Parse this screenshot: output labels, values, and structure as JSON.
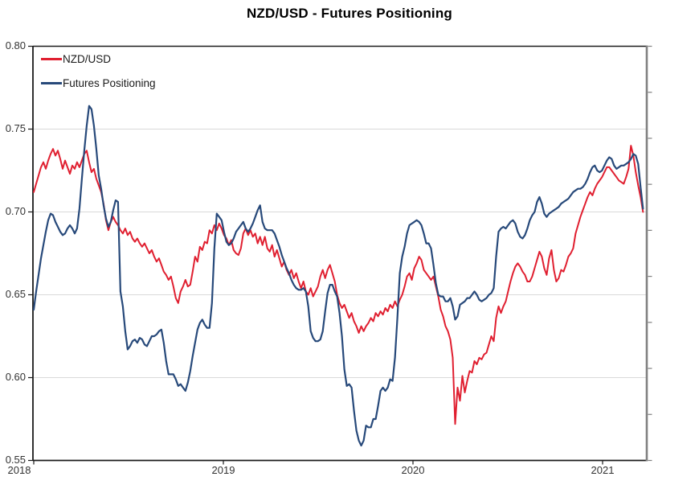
{
  "title": "NZD/USD - Futures Positioning",
  "colors": {
    "nzdusd_red": "#E01F30",
    "futures_navy": "#27497A",
    "gridline": "#D9D9D9",
    "spine_dark": "#1A1A1A",
    "spine_right_gray": "#808080",
    "tick_label_text": "#333333",
    "title_text": "#000000"
  },
  "legend": {
    "items": [
      {
        "label": "NZD/USD",
        "color": "#E01F30"
      },
      {
        "label": "Futures Positioning",
        "color": "#27497A"
      }
    ]
  },
  "chart_data": {
    "type": "line",
    "title": "NZD/USD - Futures Positioning",
    "xlabel": "",
    "ylabel": "",
    "grid": "horizontal",
    "legend_position": "upper-left-inside",
    "x_axis": {
      "tick_labels": [
        "2018",
        "2019",
        "2020",
        "2021"
      ],
      "tick_values": [
        2018,
        2019,
        2020,
        2021
      ],
      "xlim": [
        2018.0,
        2021.25
      ]
    },
    "y_axis": {
      "tick_labels": [
        "0.80",
        "0.75",
        "0.70",
        "0.65",
        "0.60",
        "0.55"
      ],
      "tick_values": [
        0.8,
        0.75,
        0.7,
        0.65,
        0.6,
        0.55
      ],
      "ylim": [
        0.55,
        0.8
      ],
      "tick_step": 0.05
    },
    "right_axis": {
      "labels_visible": false,
      "tick_count": 10
    },
    "series": [
      {
        "name": "NZD/USD",
        "color": "#E01F30",
        "width": 2,
        "x_start_year": 2018.0,
        "x_step_years": 0.0127,
        "values": [
          0.712,
          0.717,
          0.722,
          0.727,
          0.73,
          0.726,
          0.731,
          0.735,
          0.738,
          0.734,
          0.737,
          0.732,
          0.726,
          0.731,
          0.727,
          0.723,
          0.728,
          0.726,
          0.73,
          0.727,
          0.731,
          0.735,
          0.737,
          0.73,
          0.724,
          0.726,
          0.72,
          0.716,
          0.712,
          0.705,
          0.695,
          0.689,
          0.694,
          0.697,
          0.694,
          0.692,
          0.689,
          0.687,
          0.69,
          0.686,
          0.688,
          0.684,
          0.682,
          0.684,
          0.681,
          0.679,
          0.681,
          0.678,
          0.675,
          0.677,
          0.673,
          0.67,
          0.672,
          0.668,
          0.664,
          0.662,
          0.659,
          0.661,
          0.655,
          0.648,
          0.645,
          0.652,
          0.655,
          0.659,
          0.655,
          0.656,
          0.664,
          0.673,
          0.67,
          0.679,
          0.677,
          0.682,
          0.681,
          0.689,
          0.687,
          0.692,
          0.689,
          0.693,
          0.69,
          0.686,
          0.684,
          0.68,
          0.683,
          0.677,
          0.675,
          0.674,
          0.678,
          0.687,
          0.69,
          0.686,
          0.689,
          0.685,
          0.687,
          0.681,
          0.685,
          0.68,
          0.685,
          0.678,
          0.676,
          0.68,
          0.673,
          0.677,
          0.672,
          0.667,
          0.67,
          0.665,
          0.662,
          0.665,
          0.66,
          0.663,
          0.658,
          0.654,
          0.658,
          0.652,
          0.65,
          0.654,
          0.649,
          0.652,
          0.655,
          0.661,
          0.665,
          0.66,
          0.665,
          0.668,
          0.663,
          0.658,
          0.65,
          0.645,
          0.642,
          0.644,
          0.64,
          0.636,
          0.639,
          0.634,
          0.631,
          0.627,
          0.631,
          0.628,
          0.631,
          0.633,
          0.636,
          0.634,
          0.639,
          0.637,
          0.64,
          0.638,
          0.642,
          0.64,
          0.644,
          0.642,
          0.646,
          0.643,
          0.647,
          0.65,
          0.655,
          0.661,
          0.663,
          0.659,
          0.666,
          0.669,
          0.673,
          0.671,
          0.665,
          0.663,
          0.661,
          0.659,
          0.661,
          0.655,
          0.649,
          0.641,
          0.637,
          0.631,
          0.628,
          0.623,
          0.612,
          0.572,
          0.594,
          0.586,
          0.601,
          0.591,
          0.598,
          0.604,
          0.603,
          0.61,
          0.608,
          0.612,
          0.611,
          0.614,
          0.615,
          0.62,
          0.625,
          0.622,
          0.636,
          0.643,
          0.639,
          0.643,
          0.646,
          0.652,
          0.658,
          0.663,
          0.667,
          0.669,
          0.667,
          0.664,
          0.662,
          0.658,
          0.658,
          0.661,
          0.666,
          0.671,
          0.676,
          0.673,
          0.666,
          0.662,
          0.672,
          0.677,
          0.665,
          0.658,
          0.66,
          0.665,
          0.664,
          0.668,
          0.673,
          0.675,
          0.678,
          0.687,
          0.692,
          0.697,
          0.701,
          0.705,
          0.709,
          0.712,
          0.71,
          0.714,
          0.717,
          0.719,
          0.721,
          0.724,
          0.727,
          0.727,
          0.725,
          0.723,
          0.721,
          0.719,
          0.718,
          0.717,
          0.721,
          0.726,
          0.74,
          0.734,
          0.724,
          0.716,
          0.709,
          0.7
        ]
      },
      {
        "name": "Futures Positioning",
        "color": "#27497A",
        "width": 2.2,
        "x_start_year": 2018.0,
        "x_step_years": 0.0127,
        "values": [
          0.641,
          0.652,
          0.662,
          0.672,
          0.68,
          0.688,
          0.695,
          0.699,
          0.698,
          0.694,
          0.691,
          0.688,
          0.686,
          0.687,
          0.69,
          0.692,
          0.69,
          0.687,
          0.69,
          0.702,
          0.72,
          0.737,
          0.752,
          0.764,
          0.762,
          0.752,
          0.738,
          0.722,
          0.714,
          0.704,
          0.696,
          0.691,
          0.694,
          0.701,
          0.707,
          0.706,
          0.652,
          0.643,
          0.628,
          0.617,
          0.619,
          0.622,
          0.623,
          0.621,
          0.624,
          0.623,
          0.62,
          0.619,
          0.622,
          0.625,
          0.625,
          0.626,
          0.628,
          0.629,
          0.621,
          0.61,
          0.602,
          0.602,
          0.602,
          0.599,
          0.595,
          0.596,
          0.594,
          0.592,
          0.597,
          0.604,
          0.613,
          0.621,
          0.629,
          0.633,
          0.635,
          0.632,
          0.63,
          0.63,
          0.645,
          0.678,
          0.699,
          0.697,
          0.695,
          0.688,
          0.682,
          0.68,
          0.681,
          0.684,
          0.688,
          0.69,
          0.692,
          0.694,
          0.69,
          0.688,
          0.69,
          0.693,
          0.697,
          0.701,
          0.704,
          0.694,
          0.69,
          0.689,
          0.689,
          0.689,
          0.687,
          0.683,
          0.679,
          0.674,
          0.67,
          0.666,
          0.663,
          0.659,
          0.656,
          0.654,
          0.653,
          0.653,
          0.654,
          0.652,
          0.643,
          0.628,
          0.624,
          0.622,
          0.622,
          0.623,
          0.628,
          0.64,
          0.651,
          0.656,
          0.656,
          0.652,
          0.649,
          0.639,
          0.625,
          0.605,
          0.595,
          0.596,
          0.594,
          0.58,
          0.568,
          0.562,
          0.559,
          0.562,
          0.571,
          0.57,
          0.57,
          0.575,
          0.575,
          0.583,
          0.592,
          0.594,
          0.592,
          0.594,
          0.599,
          0.598,
          0.612,
          0.636,
          0.663,
          0.673,
          0.679,
          0.687,
          0.692,
          0.693,
          0.694,
          0.695,
          0.694,
          0.692,
          0.687,
          0.681,
          0.681,
          0.678,
          0.668,
          0.657,
          0.65,
          0.649,
          0.649,
          0.646,
          0.646,
          0.648,
          0.643,
          0.635,
          0.637,
          0.644,
          0.645,
          0.646,
          0.648,
          0.648,
          0.65,
          0.652,
          0.65,
          0.647,
          0.646,
          0.647,
          0.648,
          0.65,
          0.651,
          0.654,
          0.673,
          0.688,
          0.69,
          0.691,
          0.69,
          0.692,
          0.694,
          0.695,
          0.693,
          0.688,
          0.685,
          0.684,
          0.686,
          0.69,
          0.695,
          0.698,
          0.7,
          0.706,
          0.709,
          0.705,
          0.699,
          0.697,
          0.699,
          0.7,
          0.701,
          0.702,
          0.703,
          0.705,
          0.706,
          0.707,
          0.708,
          0.71,
          0.712,
          0.713,
          0.714,
          0.714,
          0.715,
          0.717,
          0.72,
          0.724,
          0.727,
          0.728,
          0.725,
          0.724,
          0.725,
          0.728,
          0.731,
          0.733,
          0.732,
          0.728,
          0.726,
          0.727,
          0.728,
          0.728,
          0.729,
          0.73,
          0.732,
          0.735,
          0.734,
          0.729,
          0.715,
          0.702
        ]
      }
    ]
  }
}
